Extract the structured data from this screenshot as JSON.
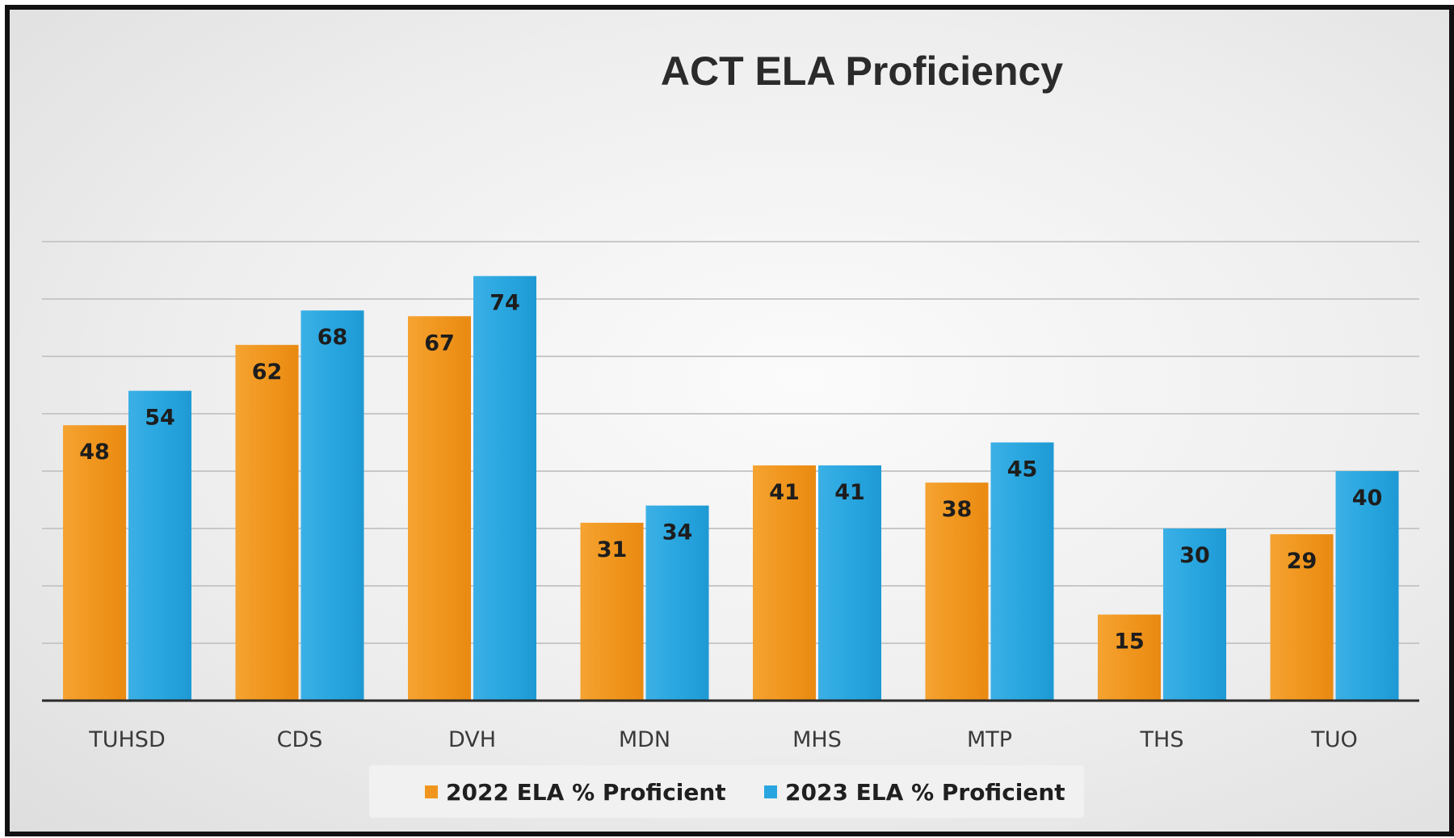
{
  "chart_data": {
    "type": "bar",
    "title": "ACT ELA Proficiency",
    "categories": [
      "TUHSD",
      "CDS",
      "DVH",
      "MDN",
      "MHS",
      "MTP",
      "THS",
      "TUO"
    ],
    "series": [
      {
        "name": "2022 ELA % Proficient",
        "color": "#f0961e",
        "values": [
          48,
          62,
          67,
          31,
          41,
          38,
          15,
          29
        ]
      },
      {
        "name": "2023 ELA % Proficient",
        "color": "#29a6df",
        "values": [
          54,
          68,
          74,
          34,
          41,
          45,
          30,
          40
        ]
      }
    ],
    "ylim": [
      0,
      80
    ],
    "gridlines": true,
    "legend_position": "bottom",
    "data_labels": true
  }
}
